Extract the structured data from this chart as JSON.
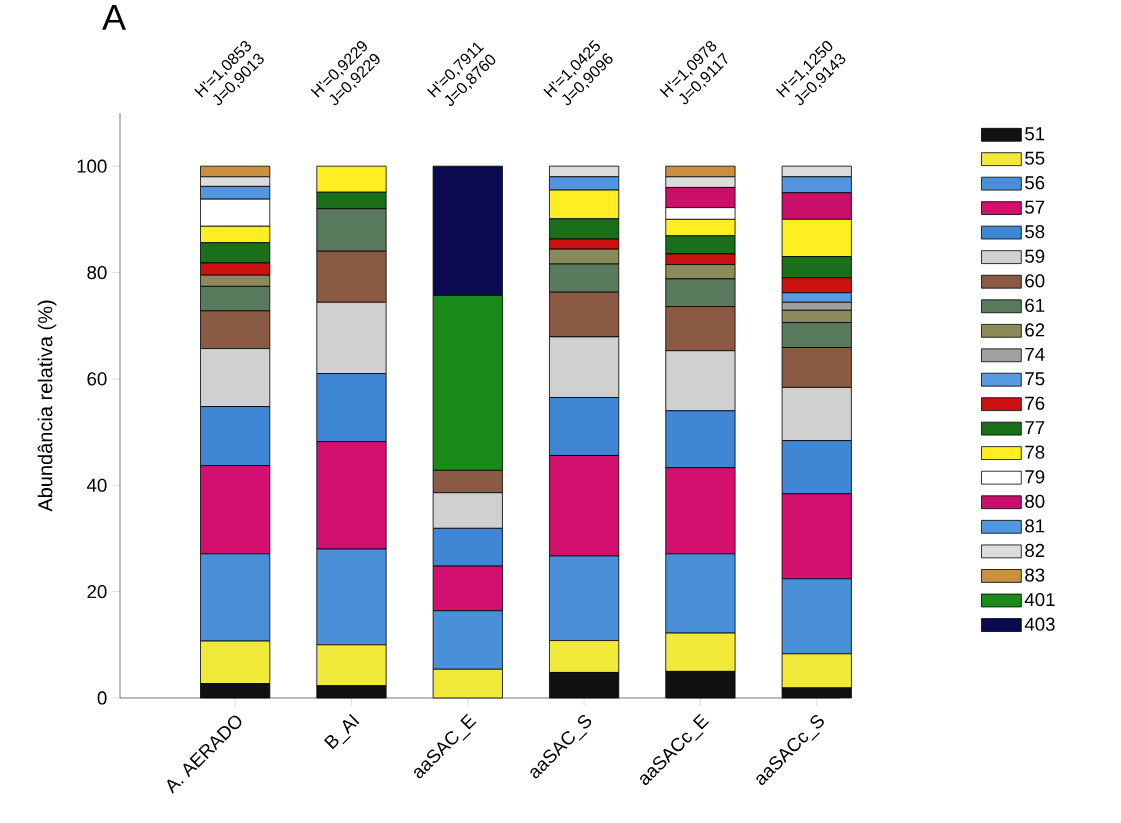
{
  "chart_data": {
    "type": "bar",
    "stacked": true,
    "title": "A",
    "ylabel": "Abundância relativa (%)",
    "categories": [
      "A. AERADO",
      "B_AI",
      "aaSAC_E",
      "aaSAC_S",
      "aaSACc_E",
      "aaSACc_S"
    ],
    "ylim": [
      0,
      110
    ],
    "yticks": [
      0,
      20,
      40,
      60,
      80,
      100
    ],
    "grid": false,
    "legend": "right",
    "annotations": [
      "H'=1,0853",
      "J=0,9013",
      "H'=0,9229",
      "J=0,9229",
      "H'=0,7911",
      "J=0,8760",
      "H'=1,0425",
      "J=0,9096",
      "H'=1,0978",
      "J=0,9117",
      "H'=1,1250",
      "J=0,9143"
    ],
    "series": [
      {
        "name": "51",
        "color": "#111111",
        "values": [
          2.7,
          2.3,
          null,
          4.8,
          5.0,
          1.9
        ]
      },
      {
        "name": "55",
        "color": "#f2ea3a",
        "values": [
          8.0,
          7.7,
          5.4,
          6.0,
          7.2,
          6.4
        ]
      },
      {
        "name": "56",
        "color": "#4a90d9",
        "values": [
          16.4,
          18.0,
          11.0,
          15.9,
          14.9,
          14.1
        ]
      },
      {
        "name": "57",
        "color": "#d4106e",
        "values": [
          16.6,
          20.2,
          8.4,
          18.9,
          16.2,
          16.0
        ]
      },
      {
        "name": "58",
        "color": "#3f86d4",
        "values": [
          11.1,
          12.8,
          7.1,
          10.9,
          10.7,
          10.0
        ]
      },
      {
        "name": "59",
        "color": "#d0d0d0",
        "values": [
          10.9,
          13.4,
          6.7,
          11.4,
          11.3,
          10.0
        ]
      },
      {
        "name": "60",
        "color": "#8b5a44",
        "values": [
          7.1,
          9.6,
          4.2,
          8.4,
          8.3,
          7.5
        ]
      },
      {
        "name": "61",
        "color": "#5a7a5e",
        "values": [
          4.6,
          8.0,
          null,
          5.3,
          5.2,
          4.7
        ]
      },
      {
        "name": "62",
        "color": "#8a8a5a",
        "values": [
          2.1,
          null,
          null,
          2.8,
          2.7,
          2.3
        ]
      },
      {
        "name": "74",
        "color": "#a0a0a0",
        "values": [
          null,
          null,
          null,
          null,
          null,
          1.5
        ]
      },
      {
        "name": "75",
        "color": "#5a9ae0",
        "values": [
          null,
          null,
          null,
          null,
          null,
          1.8
        ]
      },
      {
        "name": "76",
        "color": "#cc1111",
        "values": [
          2.3,
          null,
          null,
          1.9,
          2.0,
          2.8
        ]
      },
      {
        "name": "77",
        "color": "#1a701a",
        "values": [
          3.8,
          3.1,
          null,
          3.8,
          3.4,
          4.0
        ]
      },
      {
        "name": "78",
        "color": "#ffee22",
        "values": [
          3.1,
          4.9,
          null,
          5.4,
          3.1,
          7.0
        ]
      },
      {
        "name": "79",
        "color": "#ffffff",
        "values": [
          5.1,
          null,
          null,
          null,
          2.2,
          null
        ]
      },
      {
        "name": "80",
        "color": "#c8106a",
        "values": [
          null,
          null,
          null,
          null,
          3.8,
          5.0
        ]
      },
      {
        "name": "81",
        "color": "#5196de",
        "values": [
          2.4,
          null,
          null,
          2.5,
          null,
          3.0
        ]
      },
      {
        "name": "82",
        "color": "#dcdcdc",
        "values": [
          1.8,
          null,
          null,
          2.0,
          2.0,
          2.0
        ]
      },
      {
        "name": "83",
        "color": "#c89040",
        "values": [
          2.0,
          null,
          null,
          null,
          2.0,
          null
        ]
      },
      {
        "name": "401",
        "color": "#1a8a1a",
        "values": [
          null,
          null,
          32.9,
          null,
          null,
          null
        ]
      },
      {
        "name": "403",
        "color": "#0a0a50",
        "values": [
          null,
          null,
          24.3,
          null,
          null,
          null
        ]
      }
    ]
  }
}
